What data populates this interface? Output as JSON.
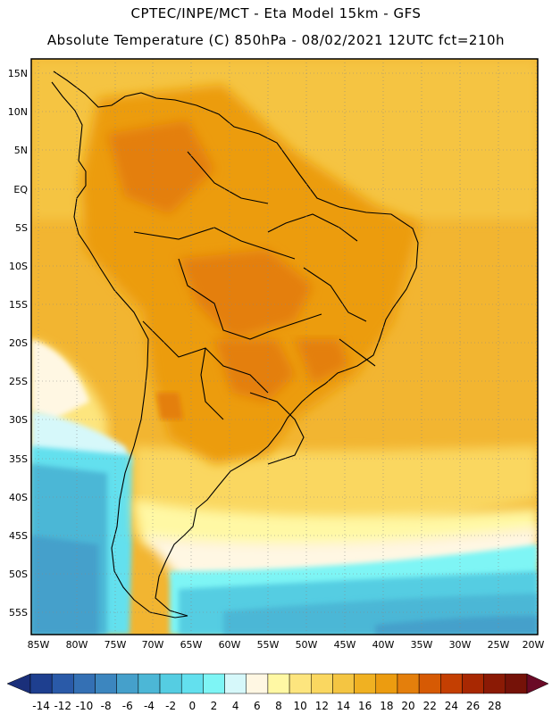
{
  "header": {
    "line1": "CPTEC/INPE/MCT -  Eta Model 15km - GFS",
    "line2": "Absolute Temperature (C) 850hPa - 08/02/2021 12UTC fct=210h"
  },
  "axes": {
    "lat_labels": [
      "15N",
      "10N",
      "5N",
      "EQ",
      "5S",
      "10S",
      "15S",
      "20S",
      "25S",
      "30S",
      "35S",
      "40S",
      "45S",
      "50S",
      "55S"
    ],
    "lon_labels": [
      "85W",
      "80W",
      "75W",
      "70W",
      "65W",
      "60W",
      "55W",
      "50W",
      "45W",
      "40W",
      "35W",
      "30W",
      "25W",
      "20W"
    ]
  },
  "colorbar": {
    "labels": [
      "-14",
      "-12",
      "-10",
      "-8",
      "-6",
      "-4",
      "-2",
      "0",
      "2",
      "4",
      "6",
      "8",
      "10",
      "12",
      "14",
      "16",
      "18",
      "20",
      "22",
      "24",
      "26",
      "28"
    ],
    "colors": [
      "#1e3f8f",
      "#2a5aa8",
      "#3470b4",
      "#3c86bf",
      "#45a0cb",
      "#4cb7d6",
      "#55cde2",
      "#63e0ee",
      "#7ef5f5",
      "#d6f8fa",
      "#fff7e3",
      "#fff8a4",
      "#fde57e",
      "#fad760",
      "#f4c542",
      "#f0b122",
      "#ec9c10",
      "#e47f0c",
      "#d65a04",
      "#c43f02",
      "#a82802",
      "#8b1a05",
      "#751208"
    ],
    "min_color": "#1a2f7a",
    "max_color": "#6a0a26"
  }
}
